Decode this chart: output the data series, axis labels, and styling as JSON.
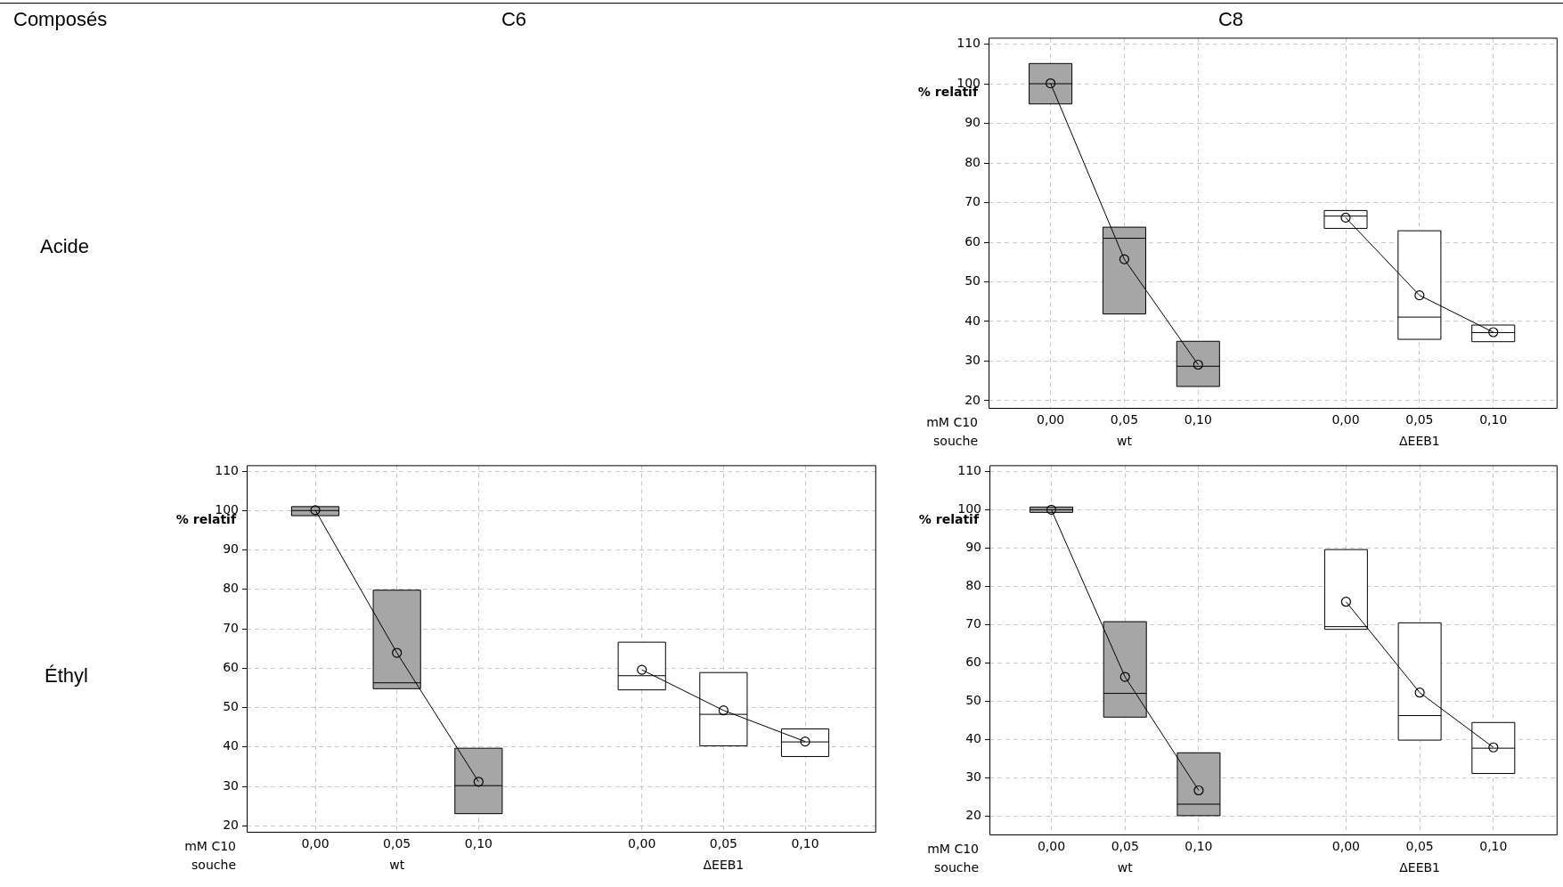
{
  "chart_data": [
    {
      "type": "box",
      "title": "C8",
      "ylabel": "% relatif",
      "xlabel": "mM C10",
      "categories": [
        "0,00",
        "0,05",
        "0,10",
        null,
        "0,00",
        "0,05",
        "0,10"
      ],
      "boxes": [
        {
          "low": 94.9,
          "q1": 94.9,
          "median": 100,
          "q3": 105.1,
          "high": 105.1
        },
        {
          "low": 41.9,
          "q1": 41.9,
          "median": 61.0,
          "q3": 63.8,
          "high": 63.8
        },
        {
          "low": 23.6,
          "q1": 23.6,
          "median": 28.7,
          "q3": 35.0,
          "high": 35.0
        },
        null,
        {
          "low": 63.5,
          "q1": 63.5,
          "median": 66.6,
          "q3": 68.0,
          "high": 68.0
        },
        {
          "low": 35.5,
          "q1": 35.5,
          "median": 41.1,
          "q3": 62.9,
          "high": 62.9
        },
        {
          "low": 34.9,
          "q1": 34.9,
          "median": 37.2,
          "q3": 39.1,
          "high": 39.1
        }
      ],
      "colors": [
        "#a6a6a6",
        "#a6a6a6",
        "#a6a6a6",
        null,
        "#ffffff",
        "#ffffff",
        "#ffffff"
      ],
      "series": [
        {
          "type": "line",
          "color": "#000000",
          "values": [
            100.1,
            55.7,
            29.1,
            null,
            66.2,
            46.6,
            37.3
          ]
        }
      ],
      "marker": "circle",
      "ylim": [
        18.2,
        111.6
      ],
      "yticks": [
        20,
        30,
        40,
        50,
        60,
        70,
        80,
        90,
        100,
        110
      ],
      "grid": true,
      "legend": false,
      "annotations": [
        "souche",
        "wt",
        "ΔEEB1",
        "Composés",
        "Acide"
      ]
    },
    {
      "type": "box",
      "title": "C6",
      "ylabel": "% relatif",
      "xlabel": "mM C10",
      "categories": [
        "0,00",
        "0,05",
        "0,10",
        null,
        "0,00",
        "0,05",
        "0,10"
      ],
      "boxes": [
        {
          "low": 98.7,
          "q1": 98.7,
          "median": 100,
          "q3": 101.0,
          "high": 101.0
        },
        {
          "low": 54.8,
          "q1": 54.8,
          "median": 56.3,
          "q3": 79.8,
          "high": 79.8
        },
        {
          "low": 23.1,
          "q1": 23.1,
          "median": 30.2,
          "q3": 39.7,
          "high": 39.7
        },
        null,
        {
          "low": 54.5,
          "q1": 54.5,
          "median": 58.1,
          "q3": 66.6,
          "high": 66.6
        },
        {
          "low": 40.3,
          "q1": 40.3,
          "median": 48.3,
          "q3": 58.9,
          "high": 58.9
        },
        {
          "low": 37.6,
          "q1": 37.6,
          "median": 41.3,
          "q3": 44.6,
          "high": 44.6
        }
      ],
      "colors": [
        "#a6a6a6",
        "#a6a6a6",
        "#a6a6a6",
        null,
        "#ffffff",
        "#ffffff",
        "#ffffff"
      ],
      "series": [
        {
          "type": "line",
          "color": "#000000",
          "values": [
            100.1,
            63.9,
            31.2,
            null,
            59.6,
            49.3,
            41.4
          ]
        }
      ],
      "marker": "circle",
      "ylim": [
        18.5,
        111.5
      ],
      "yticks": [
        20,
        30,
        40,
        50,
        60,
        70,
        80,
        90,
        100,
        110
      ],
      "grid": true,
      "legend": false,
      "annotations": [
        "souche",
        "wt",
        "ΔEEB1",
        "Éthyl"
      ]
    },
    {
      "type": "box",
      "ylabel": "% relatif",
      "xlabel": "mM C10",
      "categories": [
        "0,00",
        "0,05",
        "0,10",
        null,
        "0,00",
        "0,05",
        "0,10"
      ],
      "boxes": [
        {
          "low": 99.3,
          "q1": 99.3,
          "median": 100,
          "q3": 100.7,
          "high": 100.7
        },
        {
          "low": 45.9,
          "q1": 45.9,
          "median": 52.1,
          "q3": 70.8,
          "high": 70.8
        },
        {
          "low": 20.2,
          "q1": 20.2,
          "median": 23.2,
          "q3": 36.6,
          "high": 36.6
        },
        null,
        {
          "low": 68.8,
          "q1": 68.8,
          "median": 69.5,
          "q3": 89.6,
          "high": 89.6
        },
        {
          "low": 39.9,
          "q1": 39.9,
          "median": 46.3,
          "q3": 70.5,
          "high": 70.5
        },
        {
          "low": 31.2,
          "q1": 31.2,
          "median": 37.8,
          "q3": 44.5,
          "high": 44.5
        }
      ],
      "colors": [
        "#a6a6a6",
        "#a6a6a6",
        "#a6a6a6",
        null,
        "#ffffff",
        "#ffffff",
        "#ffffff"
      ],
      "series": [
        {
          "type": "line",
          "color": "#000000",
          "values": [
            100.0,
            56.4,
            26.8,
            null,
            76.0,
            52.3,
            38.0
          ]
        }
      ],
      "marker": "circle",
      "ylim": [
        15.3,
        111.6
      ],
      "yticks": [
        20,
        30,
        40,
        50,
        60,
        70,
        80,
        90,
        100,
        110
      ],
      "grid": true,
      "legend": false,
      "annotations": [
        "souche",
        "wt",
        "ΔEEB1"
      ]
    }
  ]
}
